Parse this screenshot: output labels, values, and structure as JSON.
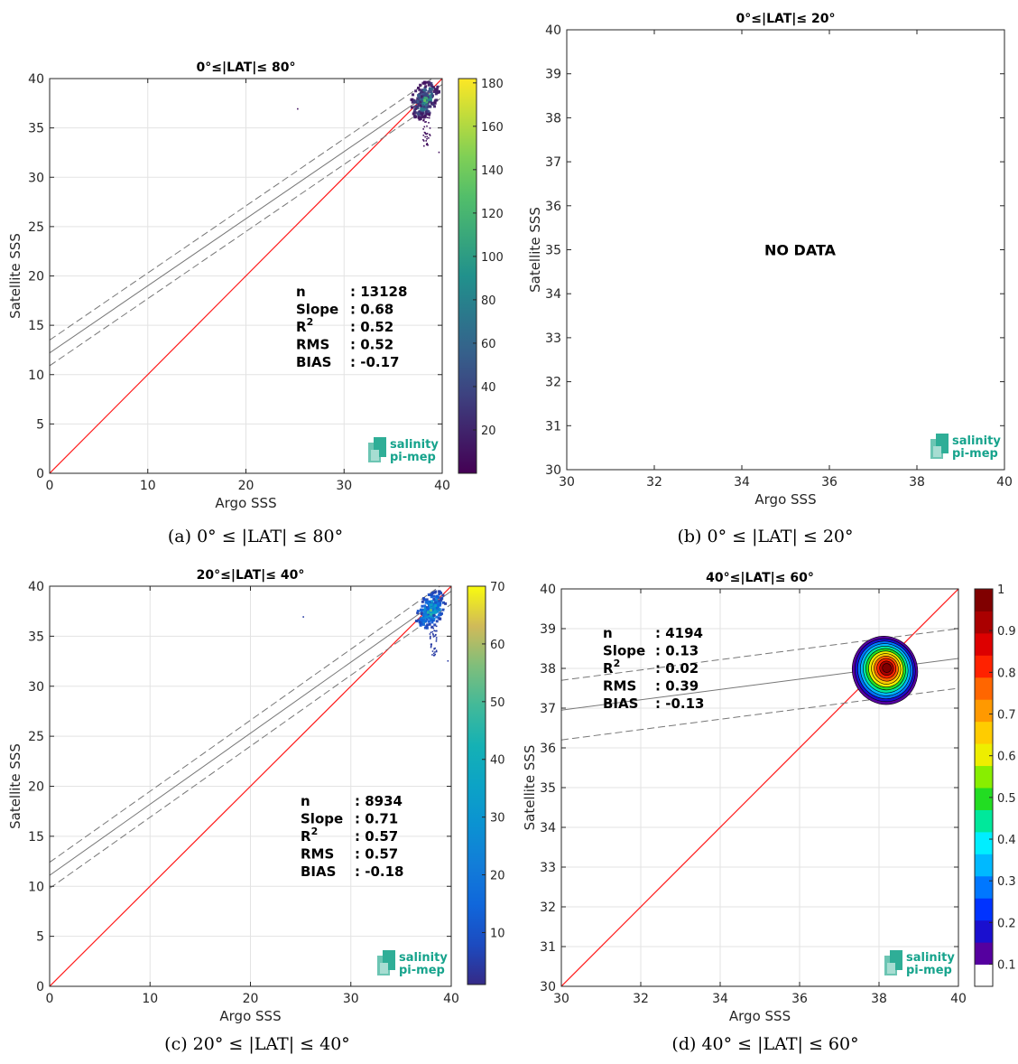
{
  "chart_data": [
    {
      "type": "heatmap",
      "id": "a",
      "title": "0°≤|LAT|≤ 80°",
      "caption": "(a) 0° ≤ |LAT| ≤ 80°",
      "xlabel": "Argo SSS",
      "ylabel": "Satellite SSS",
      "xlim": [
        0,
        40
      ],
      "ylim": [
        0,
        40
      ],
      "xticks": [
        0,
        10,
        20,
        30,
        40
      ],
      "yticks": [
        0,
        5,
        10,
        15,
        20,
        25,
        30,
        35,
        40
      ],
      "grid": true,
      "stats": [
        {
          "key": "n",
          "value": ": 13128"
        },
        {
          "key": "Slope",
          "value": ": 0.68"
        },
        {
          "key": "R",
          "sup": "2",
          "value": ": 0.52"
        },
        {
          "key": "RMS",
          "value": ": 0.52"
        },
        {
          "key": "BIAS",
          "value": ": -0.17"
        }
      ],
      "fit_line": {
        "slope": 0.68,
        "intercept": 12.2
      },
      "fit_band": {
        "upper_intercept": 13.5,
        "lower_intercept": 10.9
      },
      "identity_line": true,
      "point_cloud": {
        "x_center": 38.2,
        "y_center": 37.8
      },
      "colorbar": {
        "type": "continuous",
        "min": 0,
        "max": 182,
        "ticks": [
          20,
          40,
          60,
          80,
          100,
          120,
          140,
          160,
          180
        ]
      },
      "logo": [
        "salinity",
        "pi-mep"
      ]
    },
    {
      "type": "scatter",
      "id": "b",
      "title": "0°≤|LAT|≤ 20°",
      "caption": "(b) 0° ≤ |LAT| ≤ 20°",
      "xlabel": "Argo SSS",
      "ylabel": "Satellite SSS",
      "xlim": [
        30,
        40
      ],
      "ylim": [
        30,
        40
      ],
      "xticks": [
        30,
        32,
        34,
        36,
        38,
        40
      ],
      "yticks": [
        30,
        31,
        32,
        33,
        34,
        35,
        36,
        37,
        38,
        39,
        40
      ],
      "grid": false,
      "note": "NO DATA",
      "logo": [
        "salinity",
        "pi-mep"
      ]
    },
    {
      "type": "heatmap",
      "id": "c",
      "title": "20°≤|LAT|≤ 40°",
      "caption": "(c) 20° ≤ |LAT| ≤ 40°",
      "xlabel": "Argo SSS",
      "ylabel": "Satellite SSS",
      "xlim": [
        0,
        40
      ],
      "ylim": [
        0,
        40
      ],
      "xticks": [
        0,
        10,
        20,
        30,
        40
      ],
      "yticks": [
        0,
        5,
        10,
        15,
        20,
        25,
        30,
        35,
        40
      ],
      "grid": true,
      "stats": [
        {
          "key": "n",
          "value": ": 8934"
        },
        {
          "key": "Slope",
          "value": ": 0.71"
        },
        {
          "key": "R",
          "sup": "2",
          "value": ": 0.57"
        },
        {
          "key": "RMS",
          "value": ": 0.57"
        },
        {
          "key": "BIAS",
          "value": ": -0.18"
        }
      ],
      "fit_line": {
        "slope": 0.71,
        "intercept": 11.1
      },
      "fit_band": {
        "upper_intercept": 12.4,
        "lower_intercept": 9.8
      },
      "identity_line": true,
      "point_cloud": {
        "x_center": 38.0,
        "y_center": 37.6
      },
      "colorbar": {
        "type": "continuous",
        "min": 1,
        "max": 70,
        "ticks": [
          10,
          20,
          30,
          40,
          50,
          60,
          70
        ]
      },
      "logo": [
        "salinity",
        "pi-mep"
      ]
    },
    {
      "type": "heatmap",
      "id": "d",
      "title": "40°≤|LAT|≤ 60°",
      "caption": "(d) 40° ≤ |LAT| ≤ 60°",
      "xlabel": "Argo SSS",
      "ylabel": "Satellite SSS",
      "xlim": [
        30,
        40
      ],
      "ylim": [
        30,
        40
      ],
      "xticks": [
        30,
        32,
        34,
        36,
        38,
        40
      ],
      "yticks": [
        30,
        31,
        32,
        33,
        34,
        35,
        36,
        37,
        38,
        39,
        40
      ],
      "grid": true,
      "stats": [
        {
          "key": "n",
          "value": ": 4194"
        },
        {
          "key": "Slope",
          "value": ": 0.13"
        },
        {
          "key": "R",
          "sup": "2",
          "value": ": 0.02"
        },
        {
          "key": "RMS",
          "value": ": 0.39"
        },
        {
          "key": "BIAS",
          "value": ": -0.13"
        }
      ],
      "fit_line": {
        "slope": 0.13,
        "intercept": 33.05
      },
      "fit_band": {
        "upper_intercept": 33.8,
        "lower_intercept": 32.3
      },
      "identity_line": true,
      "density_contours": {
        "x_center": 38.15,
        "y_center": 37.95,
        "levels": [
          0.1,
          0.2,
          0.3,
          0.4,
          0.5,
          0.6,
          0.7,
          0.8,
          0.9,
          1
        ]
      },
      "colorbar": {
        "type": "discrete",
        "ticks": [
          0.1,
          0.2,
          0.3,
          0.4,
          0.5,
          0.6,
          0.7,
          0.8,
          0.9,
          1
        ],
        "colors": [
          "#ffffff",
          "#55009f",
          "#1a0fcf",
          "#0033ff",
          "#0077ff",
          "#00b9ff",
          "#00eeff",
          "#00e89b",
          "#22dd22",
          "#88ee00",
          "#eeee00",
          "#ffcc00",
          "#ff9900",
          "#ff6600",
          "#ff2200",
          "#dd0000",
          "#aa0000",
          "#800000"
        ]
      },
      "logo": [
        "salinity",
        "pi-mep"
      ]
    }
  ]
}
